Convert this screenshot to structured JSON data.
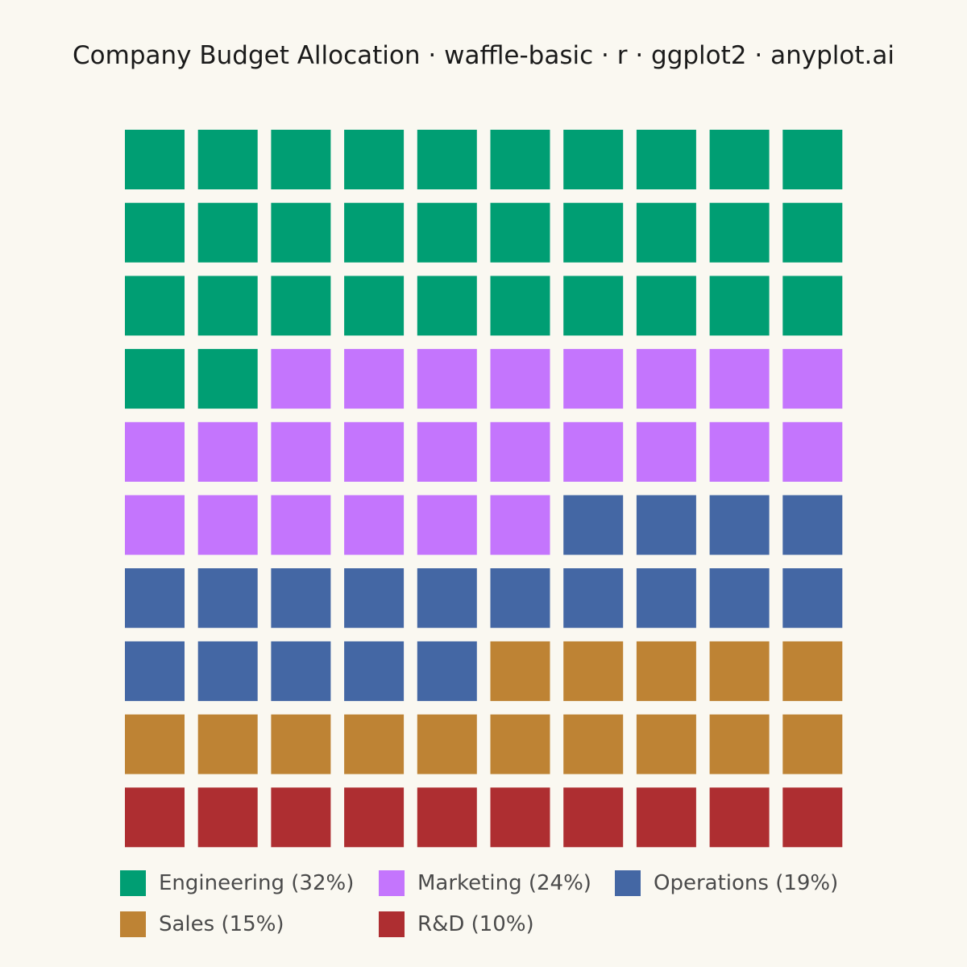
{
  "title": "Company Budget Allocation · waffle-basic · r · ggplot2 · anyplot.ai",
  "background": "#FAF8F1",
  "chart_data": {
    "type": "waffle",
    "grid": {
      "rows": 10,
      "cols": 10,
      "total_units": 100,
      "fill_order": "row-wise from top-left"
    },
    "categories": [
      "Engineering",
      "Marketing",
      "Operations",
      "Sales",
      "R&D"
    ],
    "values": [
      32,
      24,
      19,
      15,
      10
    ],
    "colors": [
      "#009E73",
      "#C475FD",
      "#4467A4",
      "#BE8334",
      "#AE2E31"
    ],
    "legend": {
      "position": "bottom",
      "labels": [
        "Engineering (32%)",
        "Marketing (24%)",
        "Operations (19%)",
        "Sales (15%)",
        "R&D (10%)"
      ]
    }
  }
}
